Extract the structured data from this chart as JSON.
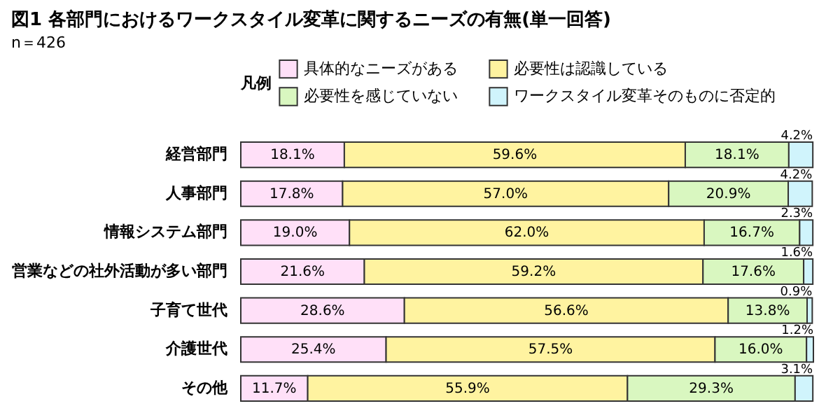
{
  "chart_data": {
    "type": "bar",
    "orientation": "horizontal",
    "stacked": true,
    "title": "図1 各部門におけるワークスタイル変革に関するニーズの有無(単一回答)",
    "annotations": [
      "n＝426"
    ],
    "legend_title": "凡例",
    "legend": "top",
    "categories": [
      "経営部門",
      "人事部門",
      "情報システム部門",
      "営業などの社外活動が多い部門",
      "子育て世代",
      "介護世代",
      "その他"
    ],
    "series": [
      {
        "name": "具体的なニーズがある",
        "color": "#ffe0f8",
        "values": [
          18.1,
          17.8,
          19.0,
          21.6,
          28.6,
          25.4,
          11.7
        ],
        "value_labels": [
          "18.1%",
          "17.8%",
          "19.0%",
          "21.6%",
          "28.6%",
          "25.4%",
          "11.7%"
        ]
      },
      {
        "name": "必要性は認識している",
        "color": "#fff3a0",
        "values": [
          59.6,
          57.0,
          62.0,
          59.2,
          56.6,
          57.5,
          55.9
        ],
        "value_labels": [
          "59.6%",
          "57.0%",
          "62.0%",
          "59.2%",
          "56.6%",
          "57.5%",
          "55.9%"
        ]
      },
      {
        "name": "必要性を感じていない",
        "color": "#d9f7c0",
        "values": [
          18.1,
          20.9,
          16.7,
          17.6,
          13.8,
          16.0,
          29.3
        ],
        "value_labels": [
          "18.1%",
          "20.9%",
          "16.7%",
          "17.6%",
          "13.8%",
          "16.0%",
          "29.3%"
        ]
      },
      {
        "name": "ワークスタイル変革そのものに否定的",
        "color": "#d0f4fc",
        "values": [
          4.2,
          4.2,
          2.3,
          1.6,
          0.9,
          1.2,
          3.1
        ],
        "value_labels": [
          "4.2%",
          "4.2%",
          "2.3%",
          "1.6%",
          "0.9%",
          "1.2%",
          "3.1%"
        ]
      }
    ]
  }
}
